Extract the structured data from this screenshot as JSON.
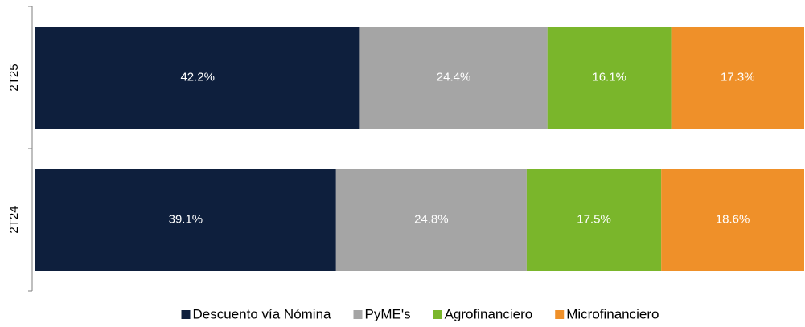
{
  "chart_data": {
    "type": "stacked-barh",
    "categories": [
      "2T25",
      "2T24"
    ],
    "xlim": [
      0,
      100
    ],
    "series": [
      {
        "name": "Descuento vía Nómina",
        "color": "#0e1f3d",
        "values": [
          42.2,
          39.1
        ],
        "value_labels": [
          "42.2%",
          "39.1%"
        ]
      },
      {
        "name": "PyME's",
        "color": "#a5a5a5",
        "values": [
          24.4,
          24.8
        ],
        "value_labels": [
          "24.4%",
          "24.8%"
        ]
      },
      {
        "name": "Agrofinanciero",
        "color": "#7ab62b",
        "values": [
          16.1,
          17.5
        ],
        "value_labels": [
          "16.1%",
          "17.5%"
        ]
      },
      {
        "name": "Microfinanciero",
        "color": "#ef9029",
        "values": [
          17.3,
          18.6
        ],
        "value_labels": [
          "17.3%",
          "18.6%"
        ]
      }
    ]
  }
}
